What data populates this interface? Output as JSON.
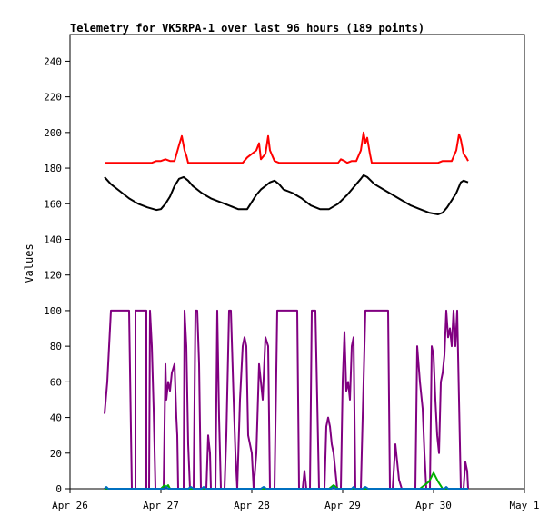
{
  "chart_data": {
    "type": "line",
    "title": "Telemetry for VK5RPA-1 over last 96 hours (189 points)",
    "xlabel": "",
    "ylabel": "Values",
    "ylim": [
      0,
      255
    ],
    "xlim": [
      0,
      5
    ],
    "grid": false,
    "x_ticks": [
      {
        "v": 0,
        "label": "Apr 26"
      },
      {
        "v": 1,
        "label": "Apr 27"
      },
      {
        "v": 2,
        "label": "Apr 28"
      },
      {
        "v": 3,
        "label": "Apr 29"
      },
      {
        "v": 4,
        "label": "Apr 30"
      },
      {
        "v": 5,
        "label": "May 1"
      }
    ],
    "y_ticks": [
      {
        "v": 0,
        "label": "0"
      },
      {
        "v": 20,
        "label": "20"
      },
      {
        "v": 40,
        "label": "40"
      },
      {
        "v": 60,
        "label": "60"
      },
      {
        "v": 80,
        "label": "80"
      },
      {
        "v": 100,
        "label": "100"
      },
      {
        "v": 120,
        "label": "120"
      },
      {
        "v": 140,
        "label": "140"
      },
      {
        "v": 160,
        "label": "160"
      },
      {
        "v": 180,
        "label": "180"
      },
      {
        "v": 200,
        "label": "200"
      },
      {
        "v": 220,
        "label": "220"
      },
      {
        "v": 240,
        "label": "240"
      }
    ],
    "series": [
      {
        "color": "#ff0000",
        "points": [
          [
            0.38,
            183
          ],
          [
            0.9,
            183
          ],
          [
            0.95,
            184
          ],
          [
            1.0,
            184
          ],
          [
            1.05,
            185
          ],
          [
            1.1,
            184
          ],
          [
            1.15,
            184
          ],
          [
            1.2,
            193
          ],
          [
            1.23,
            198
          ],
          [
            1.26,
            190
          ],
          [
            1.28,
            187
          ],
          [
            1.3,
            183
          ],
          [
            1.5,
            183
          ],
          [
            1.7,
            183
          ],
          [
            1.9,
            183
          ],
          [
            1.95,
            186
          ],
          [
            2.0,
            188
          ],
          [
            2.05,
            190
          ],
          [
            2.08,
            194
          ],
          [
            2.1,
            185
          ],
          [
            2.15,
            188
          ],
          [
            2.18,
            198
          ],
          [
            2.2,
            190
          ],
          [
            2.25,
            184
          ],
          [
            2.3,
            183
          ],
          [
            2.5,
            183
          ],
          [
            2.8,
            183
          ],
          [
            2.95,
            183
          ],
          [
            2.98,
            185
          ],
          [
            3.02,
            184
          ],
          [
            3.05,
            183
          ],
          [
            3.1,
            184
          ],
          [
            3.15,
            184
          ],
          [
            3.2,
            190
          ],
          [
            3.23,
            200
          ],
          [
            3.25,
            194
          ],
          [
            3.27,
            197
          ],
          [
            3.3,
            188
          ],
          [
            3.32,
            183
          ],
          [
            3.5,
            183
          ],
          [
            3.7,
            183
          ],
          [
            3.9,
            183
          ],
          [
            4.05,
            183
          ],
          [
            4.1,
            184
          ],
          [
            4.15,
            184
          ],
          [
            4.2,
            184
          ],
          [
            4.25,
            190
          ],
          [
            4.28,
            199
          ],
          [
            4.3,
            196
          ],
          [
            4.33,
            188
          ],
          [
            4.36,
            186
          ],
          [
            4.38,
            184
          ]
        ]
      },
      {
        "color": "#000000",
        "points": [
          [
            0.38,
            175
          ],
          [
            0.45,
            171
          ],
          [
            0.55,
            167
          ],
          [
            0.65,
            163
          ],
          [
            0.75,
            160
          ],
          [
            0.85,
            158
          ],
          [
            0.95,
            156.5
          ],
          [
            1.0,
            157
          ],
          [
            1.05,
            160
          ],
          [
            1.1,
            164
          ],
          [
            1.15,
            170
          ],
          [
            1.2,
            174
          ],
          [
            1.25,
            175
          ],
          [
            1.3,
            173
          ],
          [
            1.35,
            170
          ],
          [
            1.45,
            166
          ],
          [
            1.55,
            163
          ],
          [
            1.65,
            161
          ],
          [
            1.75,
            159
          ],
          [
            1.85,
            157
          ],
          [
            1.95,
            157
          ],
          [
            2.0,
            161
          ],
          [
            2.05,
            165
          ],
          [
            2.1,
            168
          ],
          [
            2.15,
            170
          ],
          [
            2.2,
            172
          ],
          [
            2.25,
            173
          ],
          [
            2.3,
            171
          ],
          [
            2.35,
            168
          ],
          [
            2.45,
            166
          ],
          [
            2.55,
            163
          ],
          [
            2.65,
            159
          ],
          [
            2.75,
            157
          ],
          [
            2.85,
            157
          ],
          [
            2.95,
            160
          ],
          [
            3.05,
            165
          ],
          [
            3.1,
            168
          ],
          [
            3.15,
            171
          ],
          [
            3.2,
            174
          ],
          [
            3.23,
            176
          ],
          [
            3.27,
            175
          ],
          [
            3.35,
            171
          ],
          [
            3.45,
            168
          ],
          [
            3.55,
            165
          ],
          [
            3.65,
            162
          ],
          [
            3.75,
            159
          ],
          [
            3.85,
            157
          ],
          [
            3.95,
            155
          ],
          [
            4.05,
            154
          ],
          [
            4.1,
            155
          ],
          [
            4.15,
            158
          ],
          [
            4.2,
            162
          ],
          [
            4.25,
            166
          ],
          [
            4.3,
            172
          ],
          [
            4.33,
            173
          ],
          [
            4.38,
            172
          ]
        ]
      },
      {
        "color": "#800080",
        "points": [
          [
            0.38,
            42
          ],
          [
            0.41,
            60
          ],
          [
            0.43,
            80
          ],
          [
            0.45,
            100
          ],
          [
            0.65,
            100
          ],
          [
            0.68,
            0
          ],
          [
            0.72,
            0
          ],
          [
            0.72,
            100
          ],
          [
            0.84,
            100
          ],
          [
            0.84,
            0
          ],
          [
            0.87,
            0
          ],
          [
            0.88,
            100
          ],
          [
            0.9,
            80
          ],
          [
            0.92,
            45
          ],
          [
            0.94,
            0
          ],
          [
            1.03,
            0
          ],
          [
            1.05,
            70
          ],
          [
            1.06,
            50
          ],
          [
            1.08,
            60
          ],
          [
            1.1,
            55
          ],
          [
            1.12,
            65
          ],
          [
            1.15,
            70
          ],
          [
            1.17,
            40
          ],
          [
            1.18,
            30
          ],
          [
            1.19,
            0
          ],
          [
            1.25,
            0
          ],
          [
            1.26,
            100
          ],
          [
            1.28,
            80
          ],
          [
            1.3,
            25
          ],
          [
            1.32,
            0
          ],
          [
            1.36,
            0
          ],
          [
            1.38,
            100
          ],
          [
            1.4,
            100
          ],
          [
            1.42,
            70
          ],
          [
            1.44,
            0
          ],
          [
            1.5,
            0
          ],
          [
            1.52,
            30
          ],
          [
            1.54,
            20
          ],
          [
            1.55,
            0
          ],
          [
            1.6,
            0
          ],
          [
            1.62,
            100
          ],
          [
            1.64,
            40
          ],
          [
            1.66,
            0
          ],
          [
            1.7,
            0
          ],
          [
            1.72,
            30
          ],
          [
            1.75,
            100
          ],
          [
            1.77,
            100
          ],
          [
            1.8,
            50
          ],
          [
            1.82,
            20
          ],
          [
            1.84,
            0
          ],
          [
            1.87,
            50
          ],
          [
            1.9,
            80
          ],
          [
            1.92,
            85
          ],
          [
            1.94,
            80
          ],
          [
            1.96,
            30
          ],
          [
            2.0,
            20
          ],
          [
            2.02,
            0
          ],
          [
            2.05,
            20
          ],
          [
            2.08,
            70
          ],
          [
            2.12,
            50
          ],
          [
            2.15,
            85
          ],
          [
            2.18,
            80
          ],
          [
            2.2,
            0
          ],
          [
            2.25,
            0
          ],
          [
            2.28,
            100
          ],
          [
            2.5,
            100
          ],
          [
            2.52,
            0
          ],
          [
            2.56,
            0
          ],
          [
            2.58,
            10
          ],
          [
            2.6,
            0
          ],
          [
            2.64,
            0
          ],
          [
            2.66,
            100
          ],
          [
            2.7,
            100
          ],
          [
            2.72,
            50
          ],
          [
            2.74,
            0
          ],
          [
            2.8,
            0
          ],
          [
            2.82,
            35
          ],
          [
            2.84,
            40
          ],
          [
            2.86,
            35
          ],
          [
            2.88,
            25
          ],
          [
            2.9,
            20
          ],
          [
            2.92,
            10
          ],
          [
            2.94,
            0
          ],
          [
            2.98,
            0
          ],
          [
            3.0,
            60
          ],
          [
            3.02,
            88
          ],
          [
            3.04,
            55
          ],
          [
            3.06,
            60
          ],
          [
            3.08,
            50
          ],
          [
            3.1,
            80
          ],
          [
            3.12,
            85
          ],
          [
            3.14,
            0
          ],
          [
            3.2,
            0
          ],
          [
            3.25,
            100
          ],
          [
            3.5,
            100
          ],
          [
            3.52,
            0
          ],
          [
            3.55,
            0
          ],
          [
            3.58,
            25
          ],
          [
            3.62,
            5
          ],
          [
            3.65,
            0
          ],
          [
            3.8,
            0
          ],
          [
            3.82,
            80
          ],
          [
            3.85,
            60
          ],
          [
            3.88,
            45
          ],
          [
            3.9,
            20
          ],
          [
            3.92,
            0
          ],
          [
            3.96,
            0
          ],
          [
            3.98,
            80
          ],
          [
            4.0,
            75
          ],
          [
            4.02,
            50
          ],
          [
            4.04,
            30
          ],
          [
            4.06,
            20
          ],
          [
            4.08,
            60
          ],
          [
            4.1,
            65
          ],
          [
            4.12,
            75
          ],
          [
            4.14,
            100
          ],
          [
            4.16,
            85
          ],
          [
            4.18,
            90
          ],
          [
            4.2,
            80
          ],
          [
            4.22,
            100
          ],
          [
            4.24,
            80
          ],
          [
            4.26,
            100
          ],
          [
            4.28,
            50
          ],
          [
            4.3,
            0
          ],
          [
            4.33,
            0
          ],
          [
            4.35,
            15
          ],
          [
            4.37,
            10
          ],
          [
            4.38,
            0
          ]
        ]
      },
      {
        "color": "#00b000",
        "points": [
          [
            0.38,
            0
          ],
          [
            1.0,
            0
          ],
          [
            1.04,
            2
          ],
          [
            1.06,
            1
          ],
          [
            1.08,
            2
          ],
          [
            1.1,
            0
          ],
          [
            2.85,
            0
          ],
          [
            2.9,
            2
          ],
          [
            2.95,
            0
          ],
          [
            3.85,
            0
          ],
          [
            3.95,
            4
          ],
          [
            4.0,
            9
          ],
          [
            4.05,
            4
          ],
          [
            4.1,
            0
          ],
          [
            4.38,
            0
          ]
        ]
      },
      {
        "color": "#0070c0",
        "points": [
          [
            0.38,
            0
          ],
          [
            0.4,
            1
          ],
          [
            0.42,
            0
          ],
          [
            1.04,
            0
          ],
          [
            1.06,
            1
          ],
          [
            1.08,
            0
          ],
          [
            1.3,
            0
          ],
          [
            1.33,
            1
          ],
          [
            1.36,
            0
          ],
          [
            1.45,
            0
          ],
          [
            1.47,
            1
          ],
          [
            1.49,
            0
          ],
          [
            2.1,
            0
          ],
          [
            2.13,
            1
          ],
          [
            2.16,
            0
          ],
          [
            2.88,
            0
          ],
          [
            2.9,
            1
          ],
          [
            2.92,
            0
          ],
          [
            3.1,
            0
          ],
          [
            3.12,
            1
          ],
          [
            3.14,
            0
          ],
          [
            3.22,
            0
          ],
          [
            3.25,
            1
          ],
          [
            3.28,
            0
          ],
          [
            4.12,
            0
          ],
          [
            4.14,
            1
          ],
          [
            4.16,
            0
          ],
          [
            4.38,
            0
          ]
        ]
      }
    ]
  }
}
